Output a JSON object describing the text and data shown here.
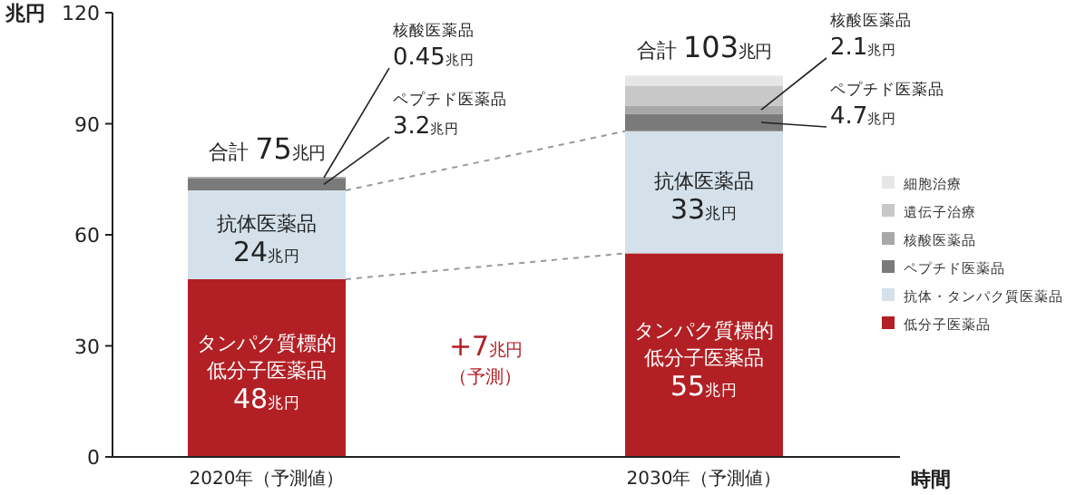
{
  "chart_data": {
    "type": "bar",
    "stacked": true,
    "categories": [
      "2020年（予測値）",
      "2030年（予測値）"
    ],
    "xlabel": "時間",
    "ylabel": "兆円",
    "ylim": [
      0,
      120
    ],
    "yticks": [
      0,
      30,
      60,
      90,
      120
    ],
    "grid": false,
    "legend": "right",
    "totals": [
      "合計 75兆円",
      "合計 103兆円"
    ],
    "annotations": [
      "+7兆円（予測）"
    ],
    "series": [
      {
        "name": "低分子医薬品",
        "color": "#b22025",
        "values": [
          48,
          55
        ],
        "value_labels": [
          "タンパク質標的低分子医薬品48兆円",
          "タンパク質標的低分子医薬品55兆円"
        ]
      },
      {
        "name": "抗体・タンパク質医薬品",
        "color": "#d4e1ea",
        "values": [
          24,
          33
        ],
        "value_labels": [
          "抗体医薬品24兆円",
          "抗体医薬品33兆円"
        ]
      },
      {
        "name": "ペプチド医薬品",
        "color": "#7a7a7a",
        "values": [
          3.2,
          4.7
        ],
        "value_labels": [
          "ペプチド医薬品3.2兆円",
          "ペプチド医薬品4.7兆円"
        ]
      },
      {
        "name": "核酸医薬品",
        "color": "#a8a8a8",
        "values": [
          0.45,
          2.1
        ],
        "value_labels": [
          "核酸医薬品0.45兆円",
          "核酸医薬品2.1兆円"
        ]
      },
      {
        "name": "遺伝子治療",
        "color": "#c8c8c8",
        "values": [
          0,
          5.5
        ]
      },
      {
        "name": "細胞治療",
        "color": "#e6e6e6",
        "values": [
          0,
          2.7
        ]
      }
    ]
  }
}
